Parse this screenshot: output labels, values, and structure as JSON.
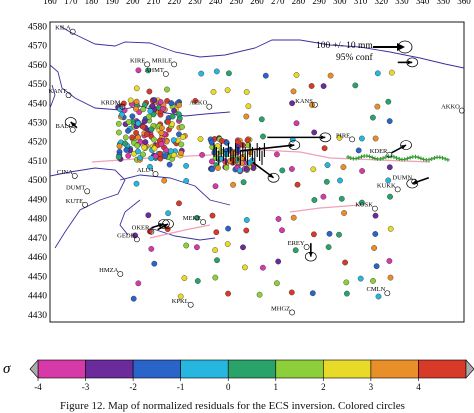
{
  "chart_data": {
    "type": "scatter",
    "xaxis": {
      "ticks": [
        160,
        170,
        180,
        190,
        200,
        210,
        220,
        230,
        240,
        250,
        260,
        270,
        280,
        290,
        300,
        310,
        320,
        330,
        340,
        350,
        360
      ],
      "range": [
        160,
        360
      ]
    },
    "yaxis": {
      "ticks": [
        4430,
        4440,
        4450,
        4460,
        4470,
        4480,
        4490,
        4500,
        4510,
        4520,
        4530,
        4540,
        4550,
        4560,
        4570,
        4580
      ],
      "range": [
        4426,
        4582
      ]
    },
    "scale_legend": {
      "label": "100 +/- 10 mm",
      "conf": "95% conf"
    },
    "colorbar": {
      "symbol": "σ",
      "ticks": [
        "-4",
        "-3",
        "-2",
        "-1",
        "0",
        "1",
        "2",
        "3",
        "4"
      ],
      "colors": [
        "#d63aa8",
        "#6b2b9a",
        "#2a64c8",
        "#27b6de",
        "#2aa36a",
        "#8ccf3a",
        "#e8da28",
        "#e98f2a",
        "#d83a2a"
      ]
    },
    "stations": [
      {
        "name": "KILA",
        "x": 170,
        "y": 4578
      },
      {
        "name": "KIRE",
        "x": 206,
        "y": 4561
      },
      {
        "name": "MRILE",
        "x": 219,
        "y": 4561
      },
      {
        "name": "AHMT",
        "x": 215,
        "y": 4556
      },
      {
        "name": "KANT",
        "x": 168,
        "y": 4545
      },
      {
        "name": "KRDM",
        "x": 194,
        "y": 4539
      },
      {
        "name": "AEKO",
        "x": 236,
        "y": 4539
      },
      {
        "name": "KANS",
        "x": 287,
        "y": 4540
      },
      {
        "name": "AKKO",
        "x": 358,
        "y": 4537
      },
      {
        "name": "BALI",
        "x": 170,
        "y": 4527
      },
      {
        "name": "PIRE",
        "x": 305,
        "y": 4522
      },
      {
        "name": "KDER",
        "x": 323,
        "y": 4514
      },
      {
        "name": "CINA",
        "x": 171,
        "y": 4503
      },
      {
        "name": "ALU4",
        "x": 210,
        "y": 4504
      },
      {
        "name": "DUMT",
        "x": 177,
        "y": 4495
      },
      {
        "name": "KUTE",
        "x": 176,
        "y": 4488
      },
      {
        "name": "KUKK",
        "x": 327,
        "y": 4496
      },
      {
        "name": "DUMN",
        "x": 335,
        "y": 4500
      },
      {
        "name": "KOSK",
        "x": 316,
        "y": 4486
      },
      {
        "name": "MEKE",
        "x": 233,
        "y": 4479
      },
      {
        "name": "OKER",
        "x": 208,
        "y": 4474
      },
      {
        "name": "GEDB",
        "x": 201,
        "y": 4470
      },
      {
        "name": "EREY",
        "x": 283,
        "y": 4466
      },
      {
        "name": "HMZA",
        "x": 193,
        "y": 4452
      },
      {
        "name": "KPKL",
        "x": 227,
        "y": 4436
      },
      {
        "name": "CMLN",
        "x": 322,
        "y": 4442
      },
      {
        "name": "MHGZ",
        "x": 276,
        "y": 4432
      }
    ],
    "vectors": [
      {
        "x": 328,
        "y": 4561,
        "dx": 7,
        "dy": 0
      },
      {
        "x": 252,
        "y": 4515,
        "dx": 26,
        "dy": 3
      },
      {
        "x": 258,
        "y": 4509,
        "dx": 10,
        "dy": -8
      },
      {
        "x": 265,
        "y": 4522,
        "dx": 28,
        "dy": 0
      },
      {
        "x": 325,
        "y": 4514,
        "dx": 7,
        "dy": 4
      },
      {
        "x": 343,
        "y": 4501,
        "dx": -8,
        "dy": -3
      },
      {
        "x": 286,
        "y": 4467,
        "dx": 0,
        "dy": -7
      },
      {
        "x": 209,
        "y": 4475,
        "dx": 6,
        "dy": 2
      },
      {
        "x": 212,
        "y": 4474,
        "dx": 5,
        "dy": 3
      },
      {
        "x": 173,
        "y": 4527,
        "dx": -3,
        "dy": 3
      }
    ]
  },
  "caption": "Figure 12.  Map of normalized residuals for the ECS inversion. Colored circles"
}
